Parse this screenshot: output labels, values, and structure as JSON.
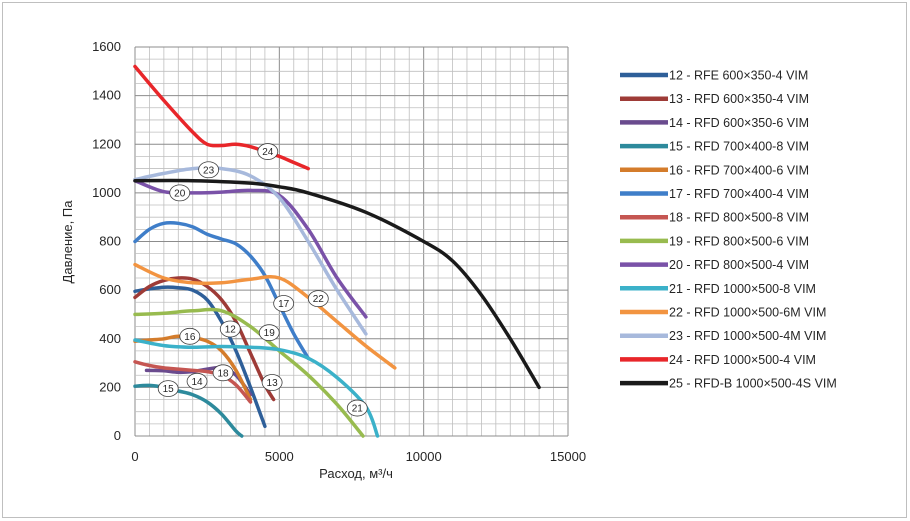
{
  "chart_data": {
    "type": "line",
    "title": "",
    "xlabel": "Расход, м³/ч",
    "ylabel": "Давление, Па",
    "xlim": [
      0,
      15000
    ],
    "ylim": [
      0,
      1600
    ],
    "x_ticks": [
      "0",
      "5000",
      "10000",
      "15000"
    ],
    "y_ticks": [
      "0",
      "200",
      "400",
      "600",
      "800",
      "1000",
      "1200",
      "1400",
      "1600"
    ],
    "grid": true,
    "legend_position": "right",
    "series": [
      {
        "name": "12 -  RFE 600×350-4 VIM",
        "color": "#2e5f99",
        "label": "12",
        "label_at": [
          3300,
          440
        ],
        "x": [
          0,
          500,
          1000,
          1500,
          2000,
          2500,
          3000,
          3500,
          4000,
          4500
        ],
        "y": [
          595,
          605,
          612,
          610,
          600,
          560,
          470,
          350,
          200,
          40
        ]
      },
      {
        "name": "13 -  RFD 600×350-4 VIM",
        "color": "#9e3b37",
        "label": "13",
        "label_at": [
          4750,
          220
        ],
        "x": [
          0,
          500,
          1000,
          1500,
          2000,
          2500,
          3000,
          3500,
          4000,
          4500,
          4800
        ],
        "y": [
          570,
          615,
          640,
          650,
          645,
          615,
          560,
          470,
          340,
          210,
          150
        ]
      },
      {
        "name": "14 -  RFD 600×350-6 VIM",
        "color": "#6a4b8e",
        "label": "14",
        "label_at": [
          2150,
          225
        ],
        "x": [
          400,
          1000,
          1500,
          2000,
          2500,
          3000,
          3500,
          4000
        ],
        "y": [
          270,
          268,
          262,
          265,
          275,
          280,
          250,
          170
        ]
      },
      {
        "name": "15 -  RFD 700×400-8 VIM",
        "color": "#2d8a9c",
        "label": "15",
        "label_at": [
          1150,
          195
        ],
        "x": [
          0,
          500,
          1000,
          1500,
          2000,
          2500,
          3000,
          3500,
          3700
        ],
        "y": [
          205,
          208,
          200,
          185,
          170,
          140,
          90,
          20,
          0
        ]
      },
      {
        "name": "16 -  RFD 700×400-6 VIM",
        "color": "#d47c2b",
        "label": "16",
        "label_at": [
          1900,
          410
        ],
        "x": [
          0,
          500,
          1000,
          1500,
          2000,
          2500,
          3000,
          3500,
          4000
        ],
        "y": [
          390,
          395,
          400,
          410,
          405,
          390,
          350,
          270,
          150
        ]
      },
      {
        "name": "17 -  RFD 700×400-4 VIM",
        "color": "#3f7ec9",
        "label": "17",
        "label_at": [
          5150,
          545
        ],
        "x": [
          0,
          500,
          1000,
          1500,
          2000,
          2500,
          3000,
          3500,
          4000,
          4500,
          5000,
          5500,
          6000
        ],
        "y": [
          800,
          850,
          875,
          875,
          860,
          830,
          810,
          790,
          740,
          660,
          540,
          420,
          320
        ]
      },
      {
        "name": "18 -  RFD 800×500-8 VIM",
        "color": "#c55652",
        "label": "18",
        "label_at": [
          3050,
          260
        ],
        "x": [
          0,
          500,
          1000,
          1500,
          2000,
          2500,
          3000,
          3500,
          4000
        ],
        "y": [
          305,
          290,
          280,
          275,
          270,
          265,
          250,
          210,
          140
        ]
      },
      {
        "name": "19 -  RFD 800×500-6 VIM",
        "color": "#98bb4f",
        "label": "19",
        "label_at": [
          4650,
          425
        ],
        "x": [
          0,
          1000,
          2000,
          3000,
          4000,
          5000,
          6000,
          7000,
          7900
        ],
        "y": [
          500,
          505,
          515,
          515,
          450,
          350,
          250,
          130,
          0
        ]
      },
      {
        "name": "20 -  RFD 800×500-4 VIM",
        "color": "#7a52a8",
        "label": "20",
        "label_at": [
          1550,
          1000
        ],
        "x": [
          0,
          1000,
          2000,
          3000,
          4000,
          5000,
          6000,
          7000,
          8000
        ],
        "y": [
          1050,
          1005,
          1000,
          1003,
          1010,
          990,
          850,
          650,
          490
        ]
      },
      {
        "name": "21 -  RFD 1000×500-8 VIM",
        "color": "#3bb1c9",
        "label": "21",
        "label_at": [
          7700,
          115
        ],
        "x": [
          0,
          1000,
          2000,
          3000,
          4000,
          5000,
          6000,
          7000,
          8000,
          8400
        ],
        "y": [
          395,
          372,
          365,
          368,
          365,
          355,
          320,
          240,
          120,
          0
        ]
      },
      {
        "name": "22 -  RFD 1000×500-6M VIM",
        "color": "#f29441",
        "label": "22",
        "label_at": [
          6350,
          565
        ],
        "x": [
          0,
          1000,
          2000,
          3000,
          4000,
          5000,
          6000,
          7000,
          8000,
          9000
        ],
        "y": [
          705,
          650,
          630,
          630,
          645,
          650,
          570,
          470,
          370,
          280
        ]
      },
      {
        "name": "23 -  RFD 1000×500-4M VIM",
        "color": "#a7b9dc",
        "label": "23",
        "label_at": [
          2550,
          1095
        ],
        "x": [
          0,
          1000,
          2000,
          3000,
          4000,
          5000,
          6000,
          7000,
          8000
        ],
        "y": [
          1055,
          1080,
          1100,
          1100,
          1070,
          980,
          800,
          600,
          420
        ]
      },
      {
        "name": "24 -  RFD 1000×500-4 VIM",
        "color": "#e8262a",
        "label": "24",
        "label_at": [
          4600,
          1170
        ],
        "x": [
          0,
          1000,
          2000,
          2500,
          3000,
          3500,
          4000,
          4500,
          5000,
          5500,
          6000
        ],
        "y": [
          1520,
          1380,
          1250,
          1200,
          1195,
          1200,
          1190,
          1170,
          1150,
          1125,
          1100
        ]
      },
      {
        "name": "25 - RFD-B 1000×500-4S VIM",
        "color": "#1a1a1a",
        "label": "",
        "label_at": null,
        "x": [
          0,
          2000,
          4000,
          5000,
          6000,
          8000,
          10000,
          11000,
          12000,
          13000,
          14000
        ],
        "y": [
          1050,
          1050,
          1040,
          1025,
          1000,
          920,
          800,
          720,
          580,
          400,
          200
        ]
      }
    ]
  }
}
